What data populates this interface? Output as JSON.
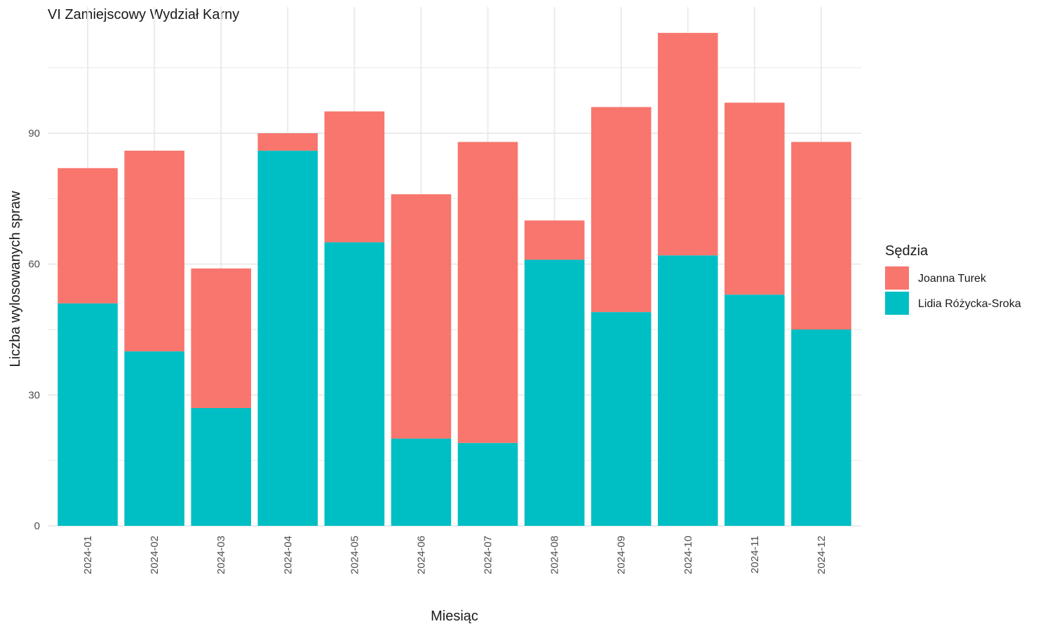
{
  "chart_data": {
    "type": "bar",
    "stacked": true,
    "title": "VI Zamiejscowy Wydział Karny",
    "xlabel": "Miesiąc",
    "ylabel": "Liczba wylosowanych spraw",
    "ylim": [
      0,
      120
    ],
    "yticks": [
      0,
      30,
      60,
      90
    ],
    "grid": true,
    "legend": {
      "title": "Sędzia",
      "position": "right"
    },
    "categories": [
      "2024-01",
      "2024-02",
      "2024-03",
      "2024-04",
      "2024-05",
      "2024-06",
      "2024-07",
      "2024-08",
      "2024-09",
      "2024-10",
      "2024-11",
      "2024-12"
    ],
    "series": [
      {
        "name": "Lidia Różycka-Sroka",
        "color": "#00BFC4",
        "values": [
          51,
          40,
          27,
          86,
          65,
          20,
          19,
          61,
          49,
          62,
          53,
          45
        ]
      },
      {
        "name": "Joanna Turek",
        "color": "#F8766D",
        "values": [
          31,
          46,
          32,
          4,
          30,
          56,
          69,
          9,
          47,
          51,
          44,
          43
        ]
      }
    ],
    "legend_order": [
      "Joanna Turek",
      "Lidia Różycka-Sroka"
    ]
  }
}
